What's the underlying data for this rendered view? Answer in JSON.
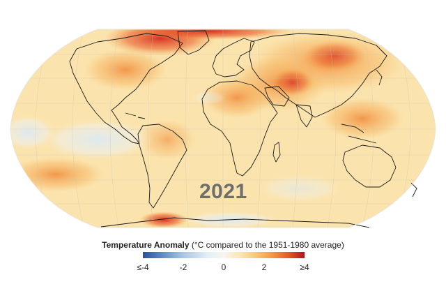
{
  "map": {
    "year": "2021",
    "projection": "robinson",
    "colors": {
      "ocean_base": "#fbe0a6",
      "land_outline": "#1a1a1a",
      "hot": "#c81e1e",
      "warm": "#f29a3d",
      "cool": "#dfe9f3"
    }
  },
  "legend": {
    "title_bold": "Temperature Anomaly",
    "title_rest": " (°C compared to the 1951-1980 average)",
    "ticks": [
      {
        "label": "≤-4",
        "value": -4
      },
      {
        "label": "-2",
        "value": -2
      },
      {
        "label": "0",
        "value": 0
      },
      {
        "label": "2",
        "value": 2
      },
      {
        "label": "≥4",
        "value": 4
      }
    ],
    "range": [
      -4,
      4
    ]
  }
}
